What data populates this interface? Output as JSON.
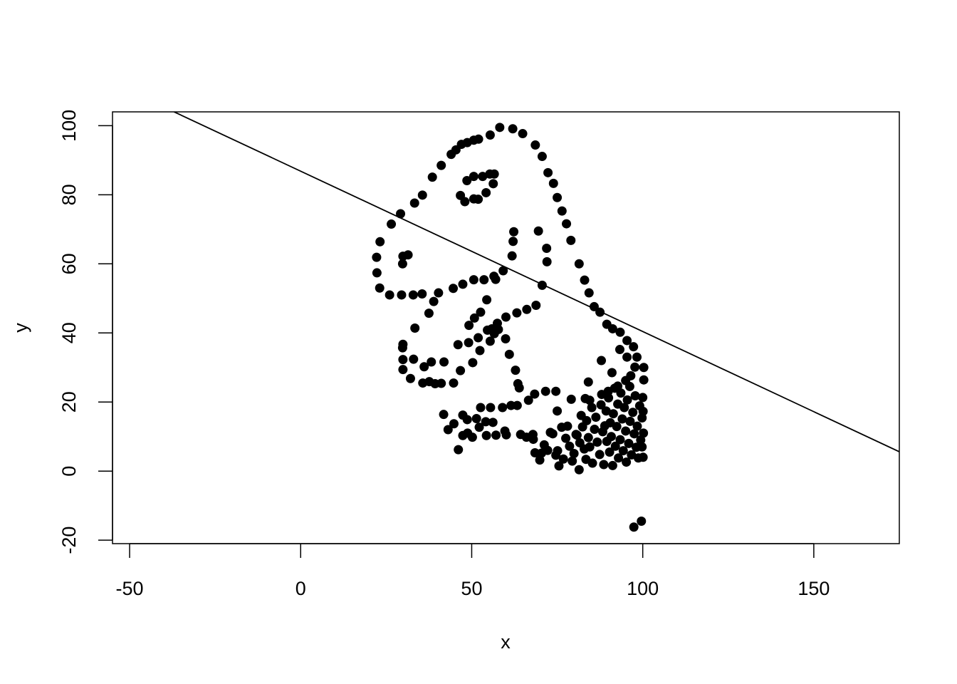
{
  "chart_data": {
    "type": "scatter",
    "title": "",
    "xlabel": "x",
    "ylabel": "y",
    "xlim": [
      -55,
      175
    ],
    "ylim": [
      -21,
      104
    ],
    "xticks": [
      -50,
      0,
      50,
      100,
      150
    ],
    "yticks": [
      -20,
      0,
      20,
      40,
      60,
      80,
      100
    ],
    "xtick_labels": [
      "-50",
      "0",
      "50",
      "100",
      "150"
    ],
    "ytick_labels": [
      "-20",
      "0",
      "20",
      "40",
      "60",
      "80",
      "100"
    ],
    "grid": false,
    "point_color": "#000000",
    "line": {
      "description": "straight line",
      "points": [
        [
          -37,
          104
        ],
        [
          175,
          5.6
        ]
      ]
    },
    "points": [
      [
        58.2,
        99.5
      ],
      [
        62.0,
        99.1
      ],
      [
        64.9,
        97.7
      ],
      [
        55.4,
        97.3
      ],
      [
        52.0,
        96.1
      ],
      [
        50.6,
        95.8
      ],
      [
        48.7,
        95.1
      ],
      [
        47.0,
        94.6
      ],
      [
        45.4,
        93.0
      ],
      [
        44.0,
        91.7
      ],
      [
        41.1,
        88.5
      ],
      [
        38.5,
        85.1
      ],
      [
        35.6,
        79.9
      ],
      [
        33.3,
        77.6
      ],
      [
        29.2,
        74.5
      ],
      [
        26.5,
        71.5
      ],
      [
        23.2,
        66.4
      ],
      [
        22.2,
        61.9
      ],
      [
        22.3,
        57.4
      ],
      [
        23.1,
        53.0
      ],
      [
        26.0,
        51.0
      ],
      [
        29.5,
        51.0
      ],
      [
        32.9,
        51.0
      ],
      [
        35.5,
        51.3
      ],
      [
        40.3,
        51.6
      ],
      [
        44.6,
        52.9
      ],
      [
        47.4,
        54.1
      ],
      [
        50.6,
        55.4
      ],
      [
        53.6,
        55.4
      ],
      [
        56.5,
        56.4
      ],
      [
        57.0,
        55.5
      ],
      [
        59.2,
        58.0
      ],
      [
        61.8,
        62.3
      ],
      [
        62.1,
        66.5
      ],
      [
        62.3,
        69.3
      ],
      [
        69.5,
        69.5
      ],
      [
        71.9,
        64.5
      ],
      [
        72.0,
        60.6
      ],
      [
        70.6,
        53.8
      ],
      [
        68.8,
        48.0
      ],
      [
        66.1,
        46.8
      ],
      [
        63.2,
        45.8
      ],
      [
        60.0,
        44.6
      ],
      [
        57.5,
        42.8
      ],
      [
        54.6,
        40.8
      ],
      [
        51.9,
        38.6
      ],
      [
        49.1,
        37.2
      ],
      [
        46.0,
        36.6
      ],
      [
        41.9,
        31.6
      ],
      [
        38.2,
        31.6
      ],
      [
        36.1,
        30.2
      ],
      [
        33.0,
        32.4
      ],
      [
        29.9,
        32.3
      ],
      [
        29.9,
        29.4
      ],
      [
        32.1,
        26.8
      ],
      [
        35.7,
        25.5
      ],
      [
        37.6,
        25.9
      ],
      [
        39.3,
        25.3
      ],
      [
        41.1,
        25.4
      ],
      [
        44.7,
        25.5
      ],
      [
        46.7,
        29.1
      ],
      [
        50.3,
        31.4
      ],
      [
        52.4,
        34.9
      ],
      [
        55.4,
        37.6
      ],
      [
        57.8,
        41.0
      ],
      [
        59.9,
        38.3
      ],
      [
        61.0,
        33.8
      ],
      [
        62.8,
        29.2
      ],
      [
        63.5,
        25.3
      ],
      [
        63.9,
        24.1
      ],
      [
        66.6,
        20.5
      ],
      [
        68.4,
        22.3
      ],
      [
        71.6,
        23.1
      ],
      [
        74.6,
        23.1
      ],
      [
        75.0,
        17.4
      ],
      [
        79.1,
        20.8
      ],
      [
        83.2,
        21.0
      ],
      [
        84.5,
        20.5
      ],
      [
        88.0,
        22.2
      ],
      [
        89.9,
        23.1
      ],
      [
        92.7,
        24.6
      ],
      [
        95.0,
        26.2
      ],
      [
        96.5,
        27.6
      ],
      [
        97.7,
        30.1
      ],
      [
        100.3,
        30.0
      ],
      [
        100.3,
        26.4
      ],
      [
        98.3,
        33.0
      ],
      [
        97.3,
        36.0
      ],
      [
        95.4,
        37.8
      ],
      [
        93.4,
        40.2
      ],
      [
        91.2,
        41.2
      ],
      [
        89.5,
        42.5
      ],
      [
        87.5,
        46.0
      ],
      [
        85.8,
        47.6
      ],
      [
        84.3,
        51.6
      ],
      [
        83.0,
        55.3
      ],
      [
        81.4,
        60.0
      ],
      [
        79.0,
        66.8
      ],
      [
        77.7,
        71.6
      ],
      [
        76.4,
        75.3
      ],
      [
        75.0,
        79.2
      ],
      [
        73.9,
        83.3
      ],
      [
        72.3,
        86.4
      ],
      [
        70.6,
        91.1
      ],
      [
        68.6,
        94.4
      ],
      [
        46.7,
        79.8
      ],
      [
        48.0,
        78.0
      ],
      [
        50.6,
        78.8
      ],
      [
        51.9,
        78.7
      ],
      [
        54.2,
        80.6
      ],
      [
        56.3,
        83.2
      ],
      [
        56.6,
        86.0
      ],
      [
        55.3,
        86.0
      ],
      [
        53.2,
        85.3
      ],
      [
        50.6,
        85.3
      ],
      [
        48.6,
        84.1
      ],
      [
        29.9,
        62.2
      ],
      [
        31.4,
        62.6
      ],
      [
        29.8,
        60.0
      ],
      [
        29.9,
        36.7
      ],
      [
        29.8,
        35.7
      ],
      [
        33.4,
        41.4
      ],
      [
        37.5,
        45.7
      ],
      [
        38.9,
        49.1
      ],
      [
        49.2,
        42.2
      ],
      [
        50.8,
        44.3
      ],
      [
        52.6,
        46.0
      ],
      [
        54.4,
        49.6
      ],
      [
        55.9,
        41.2
      ],
      [
        56.6,
        39.8
      ],
      [
        44.8,
        13.7
      ],
      [
        46.1,
        6.2
      ],
      [
        47.4,
        10.3
      ],
      [
        48.8,
        11.0
      ],
      [
        47.4,
        16.2
      ],
      [
        48.7,
        14.9
      ],
      [
        50.2,
        9.8
      ],
      [
        51.4,
        15.2
      ],
      [
        52.2,
        12.7
      ],
      [
        52.6,
        18.4
      ],
      [
        54.1,
        14.3
      ],
      [
        54.3,
        10.3
      ],
      [
        55.5,
        18.4
      ],
      [
        56.2,
        14.1
      ],
      [
        57.1,
        10.4
      ],
      [
        59.0,
        18.4
      ],
      [
        60.1,
        10.5
      ],
      [
        61.5,
        19.0
      ],
      [
        63.3,
        19.0
      ],
      [
        64.3,
        10.6
      ],
      [
        67.9,
        10.6
      ],
      [
        68.0,
        9.2
      ],
      [
        68.5,
        5.3
      ],
      [
        69.9,
        3.2
      ],
      [
        71.2,
        7.6
      ],
      [
        72.2,
        6.0
      ],
      [
        73.7,
        10.8
      ],
      [
        74.6,
        4.6
      ],
      [
        75.1,
        5.9
      ],
      [
        75.5,
        1.5
      ],
      [
        76.3,
        12.7
      ],
      [
        77.5,
        9.5
      ],
      [
        78.0,
        13.0
      ],
      [
        78.6,
        7.2
      ],
      [
        79.4,
        2.9
      ],
      [
        79.9,
        5.1
      ],
      [
        80.8,
        10.4
      ],
      [
        81.4,
        0.4
      ],
      [
        81.6,
        8.2
      ],
      [
        82.0,
        16.1
      ],
      [
        82.4,
        12.8
      ],
      [
        82.9,
        6.4
      ],
      [
        83.4,
        3.4
      ],
      [
        83.6,
        14.6
      ],
      [
        84.1,
        9.7
      ],
      [
        84.5,
        7.0
      ],
      [
        85.1,
        18.4
      ],
      [
        85.3,
        2.3
      ],
      [
        85.9,
        12.1
      ],
      [
        86.3,
        15.6
      ],
      [
        86.7,
        8.4
      ],
      [
        87.4,
        4.8
      ],
      [
        87.8,
        19.2
      ],
      [
        88.3,
        11.4
      ],
      [
        88.6,
        1.9
      ],
      [
        88.9,
        13.1
      ],
      [
        89.3,
        17.4
      ],
      [
        89.5,
        8.6
      ],
      [
        90.0,
        21.2
      ],
      [
        90.3,
        5.5
      ],
      [
        90.5,
        14.0
      ],
      [
        90.8,
        10.0
      ],
      [
        91.2,
        1.6
      ],
      [
        91.4,
        16.6
      ],
      [
        91.8,
        24.0
      ],
      [
        92.0,
        7.2
      ],
      [
        92.4,
        12.9
      ],
      [
        92.7,
        19.4
      ],
      [
        92.9,
        3.8
      ],
      [
        93.4,
        9.1
      ],
      [
        93.6,
        22.6
      ],
      [
        94.0,
        15.1
      ],
      [
        94.3,
        5.9
      ],
      [
        94.6,
        18.4
      ],
      [
        95.0,
        11.6
      ],
      [
        95.2,
        2.6
      ],
      [
        95.5,
        20.6
      ],
      [
        95.9,
        8.0
      ],
      [
        96.2,
        24.5
      ],
      [
        96.3,
        14.4
      ],
      [
        96.7,
        4.7
      ],
      [
        97.1,
        17.0
      ],
      [
        97.5,
        10.8
      ],
      [
        97.8,
        21.8
      ],
      [
        98.1,
        6.9
      ],
      [
        98.4,
        13.0
      ],
      [
        98.7,
        3.8
      ],
      [
        99.1,
        18.9
      ],
      [
        99.4,
        9.0
      ],
      [
        99.8,
        15.4
      ],
      [
        100.1,
        4.0
      ],
      [
        100.2,
        11.0
      ],
      [
        100.1,
        17.3
      ],
      [
        100.0,
        21.3
      ],
      [
        99.8,
        7.0
      ],
      [
        87.9,
        32.0
      ],
      [
        91.0,
        28.5
      ],
      [
        93.3,
        35.2
      ],
      [
        95.4,
        33.0
      ],
      [
        84.1,
        25.8
      ],
      [
        80.5,
        10.6
      ],
      [
        76.8,
        3.5
      ],
      [
        73.0,
        11.2
      ],
      [
        70.4,
        5.2
      ],
      [
        66.0,
        9.8
      ],
      [
        97.4,
        -16.2
      ],
      [
        99.6,
        -14.5
      ],
      [
        41.8,
        16.4
      ],
      [
        43.1,
        12.0
      ],
      [
        59.7,
        11.6
      ]
    ]
  }
}
